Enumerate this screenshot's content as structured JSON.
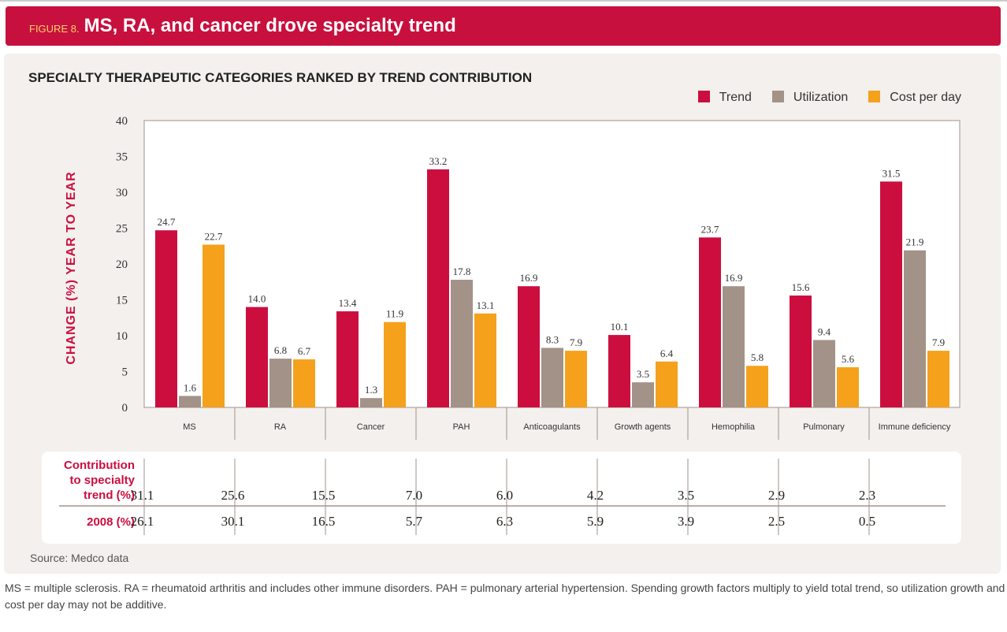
{
  "header": {
    "figure_label": "FIGURE 8.",
    "title": "MS, RA, and cancer drove specialty trend"
  },
  "colors": {
    "trend": "#cc0e3f",
    "utilization": "#a39288",
    "cost": "#f5a11c"
  },
  "chart_data": {
    "type": "bar",
    "title": "SPECIALTY THERAPEUTIC CATEGORIES RANKED BY TREND CONTRIBUTION",
    "ylabel": "CHANGE (%) YEAR TO YEAR",
    "ylim": [
      0,
      40
    ],
    "yticks": [
      "0",
      "5",
      "10",
      "15",
      "20",
      "25",
      "30",
      "35",
      "40"
    ],
    "legend_position": "top-right",
    "categories": [
      "MS",
      "RA",
      "Cancer",
      "PAH",
      "Anticoagulants",
      "Growth agents",
      "Hemophilia",
      "Pulmonary",
      "Immune deficiency"
    ],
    "series": [
      {
        "name": "Trend",
        "values": [
          24.7,
          14.0,
          13.4,
          33.2,
          16.9,
          10.1,
          23.7,
          15.6,
          31.5
        ]
      },
      {
        "name": "Utilization",
        "values": [
          1.6,
          6.8,
          1.3,
          17.8,
          8.3,
          3.5,
          16.9,
          9.4,
          21.9
        ]
      },
      {
        "name": "Cost per day",
        "values": [
          22.7,
          6.7,
          11.9,
          13.1,
          7.9,
          6.4,
          5.8,
          5.6,
          7.9
        ]
      }
    ]
  },
  "table": {
    "rows": [
      {
        "label": "Contribution to specialty trend (%)",
        "values": [
          "31.1",
          "25.6",
          "15.5",
          "7.0",
          "6.0",
          "4.2",
          "3.5",
          "2.9",
          "2.3"
        ]
      },
      {
        "label": "2008 (%)",
        "values": [
          "26.1",
          "30.1",
          "16.5",
          "5.7",
          "6.3",
          "5.9",
          "3.9",
          "2.5",
          "0.5"
        ]
      }
    ]
  },
  "source": "Source: Medco data",
  "footnote": "MS = multiple sclerosis. RA = rheumatoid arthritis and includes other immune disorders. PAH = pulmonary arterial hypertension. Spending growth factors multiply to yield total trend, so utilization growth and cost per day may not be additive."
}
